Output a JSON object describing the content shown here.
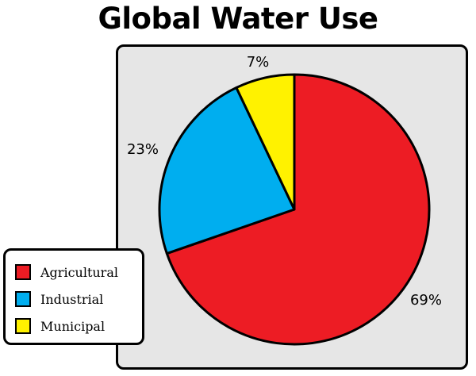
{
  "chart_data": {
    "type": "pie",
    "title": "Global Water Use",
    "categories": [
      "Agricultural",
      "Industrial",
      "Municipal"
    ],
    "values": [
      69,
      23,
      7
    ],
    "labels": [
      "69%",
      "23%",
      "7%"
    ],
    "colors": [
      "#ed1c24",
      "#00aeef",
      "#fff200"
    ],
    "legend_position": "bottom-left",
    "start_angle": "top",
    "direction": "clockwise"
  }
}
